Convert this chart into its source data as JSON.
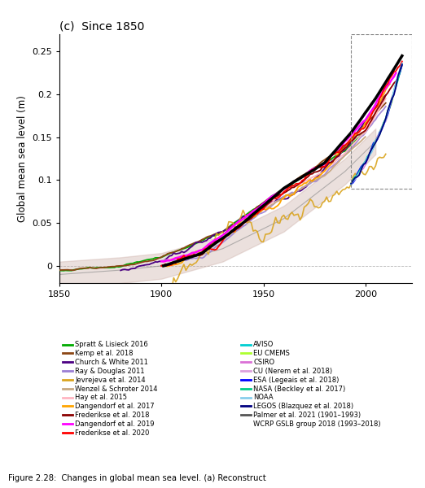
{
  "title": "(c)  Since 1850",
  "ylabel": "Global mean sea level (m)",
  "xlim": [
    1850,
    2020
  ],
  "ylim": [
    -0.02,
    0.27
  ],
  "yticks": [
    0,
    0.05,
    0.1,
    0.15,
    0.2,
    0.25
  ],
  "ytick_labels": [
    "0",
    "0.05",
    "0.1",
    "0.15",
    "0.2",
    "0.25"
  ],
  "xticks": [
    1850,
    1900,
    1950,
    2000
  ],
  "background_color": "#ffffff",
  "legend_left": [
    {
      "label": "Spratt & Lisieck 2016",
      "color": "#00aa00"
    },
    {
      "label": "Kemp et al. 2018",
      "color": "#8B4513"
    },
    {
      "label": "Church & White 2011",
      "color": "#4B0082"
    },
    {
      "label": "Ray & Douglas 2011",
      "color": "#9B7FD4"
    },
    {
      "label": "Jevrejeva et al. 2014",
      "color": "#DAA520"
    },
    {
      "label": "Wenzel & Schroter 2014",
      "color": "#C8A882"
    },
    {
      "label": "Hay et al. 2015",
      "color": "#FFB6C1"
    },
    {
      "label": "Dangendorf et al. 2017",
      "color": "#FFA500"
    },
    {
      "label": "Frederikse et al. 2018",
      "color": "#8B0000"
    },
    {
      "label": "Dangendorf et al. 2019",
      "color": "#FF00FF"
    },
    {
      "label": "Frederikse et al. 2020",
      "color": "#FF0000"
    }
  ],
  "legend_right": [
    {
      "label": "AVISO",
      "color": "#00CED1"
    },
    {
      "label": "EU CMEMS",
      "color": "#ADFF2F"
    },
    {
      "label": "CSIRO",
      "color": "#DA70D6"
    },
    {
      "label": "CU (Nerem et al. 2018)",
      "color": "#DDA0DD"
    },
    {
      "label": "ESA (Legeais et al. 2018)",
      "color": "#0000FF"
    },
    {
      "label": "NASA (Beckley et al. 2017)",
      "color": "#00CC88"
    },
    {
      "label": "NOAA",
      "color": "#87CEEB"
    },
    {
      "label": "LEGOS (Blazquez et al. 2018)",
      "color": "#000080"
    },
    {
      "label": "Palmer et al. 2021 (1901–1993)",
      "color": "#555555"
    },
    {
      "label": "WCRP GSLB group 2018 (1993–2018)",
      "color": "#000000",
      "no_line": true
    }
  ],
  "caption": "Figure 2.28:  Changes in global mean sea level. (a) Reconstruct"
}
